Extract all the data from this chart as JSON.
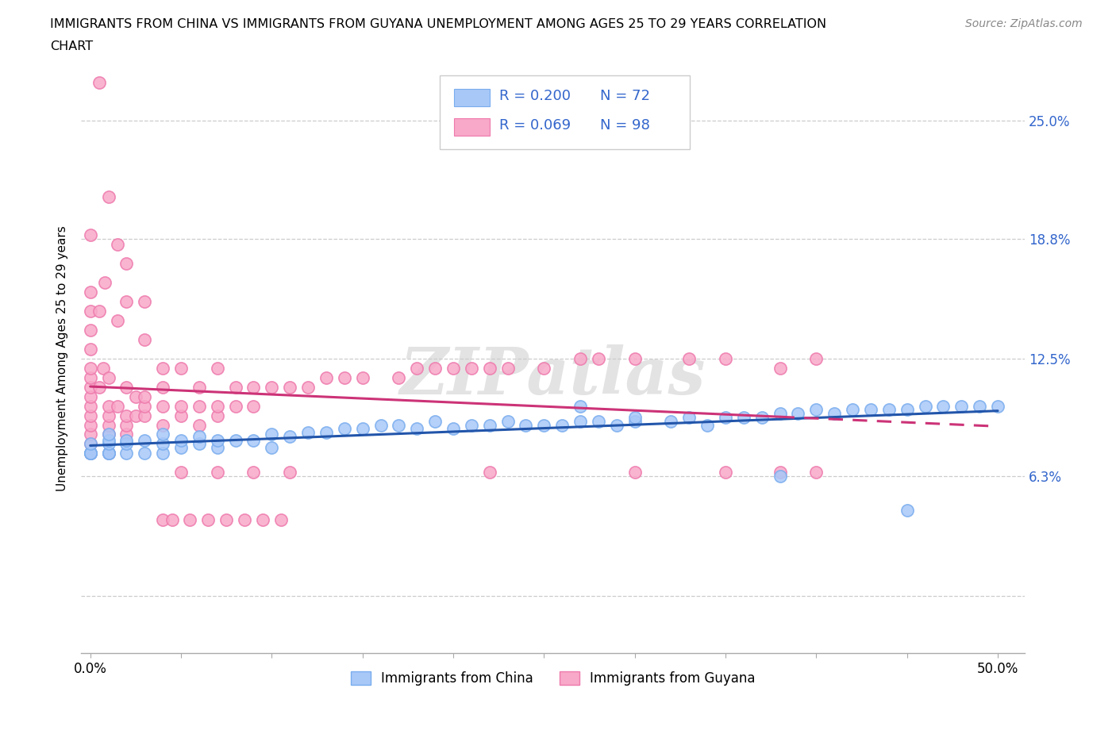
{
  "title_line1": "IMMIGRANTS FROM CHINA VS IMMIGRANTS FROM GUYANA UNEMPLOYMENT AMONG AGES 25 TO 29 YEARS CORRELATION",
  "title_line2": "CHART",
  "source": "Source: ZipAtlas.com",
  "ylabel": "Unemployment Among Ages 25 to 29 years",
  "xlim": [
    -0.005,
    0.515
  ],
  "ylim": [
    -0.03,
    0.28
  ],
  "ytick_vals": [
    0.0,
    0.063,
    0.125,
    0.188,
    0.25
  ],
  "ytick_labels": [
    "",
    "6.3%",
    "12.5%",
    "18.8%",
    "25.0%"
  ],
  "china_color": "#a8c8f8",
  "china_edge_color": "#7aadee",
  "guyana_color": "#f8a8c8",
  "guyana_edge_color": "#ee7aad",
  "china_line_color": "#2255aa",
  "guyana_line_color": "#cc3377",
  "watermark": "ZIPatlas",
  "legend_r_china": "R = 0.200",
  "legend_n_china": "N = 72",
  "legend_r_guyana": "R = 0.069",
  "legend_n_guyana": "N = 98",
  "china_x": [
    0.0,
    0.0,
    0.0,
    0.0,
    0.0,
    0.01,
    0.01,
    0.01,
    0.01,
    0.01,
    0.01,
    0.02,
    0.02,
    0.02,
    0.03,
    0.03,
    0.04,
    0.04,
    0.04,
    0.05,
    0.05,
    0.06,
    0.06,
    0.07,
    0.07,
    0.08,
    0.09,
    0.1,
    0.1,
    0.11,
    0.12,
    0.13,
    0.14,
    0.15,
    0.16,
    0.17,
    0.18,
    0.19,
    0.2,
    0.21,
    0.22,
    0.23,
    0.24,
    0.25,
    0.26,
    0.27,
    0.28,
    0.29,
    0.3,
    0.32,
    0.33,
    0.34,
    0.35,
    0.36,
    0.37,
    0.38,
    0.39,
    0.4,
    0.41,
    0.42,
    0.43,
    0.44,
    0.45,
    0.46,
    0.47,
    0.48,
    0.49,
    0.5,
    0.27,
    0.3,
    0.38,
    0.45
  ],
  "china_y": [
    0.075,
    0.075,
    0.075,
    0.075,
    0.08,
    0.075,
    0.075,
    0.075,
    0.08,
    0.082,
    0.085,
    0.075,
    0.08,
    0.082,
    0.075,
    0.082,
    0.075,
    0.08,
    0.085,
    0.078,
    0.082,
    0.08,
    0.084,
    0.078,
    0.082,
    0.082,
    0.082,
    0.078,
    0.085,
    0.084,
    0.086,
    0.086,
    0.088,
    0.088,
    0.09,
    0.09,
    0.088,
    0.092,
    0.088,
    0.09,
    0.09,
    0.092,
    0.09,
    0.09,
    0.09,
    0.092,
    0.092,
    0.09,
    0.092,
    0.092,
    0.094,
    0.09,
    0.094,
    0.094,
    0.094,
    0.096,
    0.096,
    0.098,
    0.096,
    0.098,
    0.098,
    0.098,
    0.098,
    0.1,
    0.1,
    0.1,
    0.1,
    0.1,
    0.1,
    0.094,
    0.063,
    0.045
  ],
  "guyana_x": [
    0.0,
    0.0,
    0.0,
    0.0,
    0.0,
    0.0,
    0.0,
    0.0,
    0.0,
    0.0,
    0.0,
    0.0,
    0.0,
    0.0,
    0.0,
    0.005,
    0.005,
    0.007,
    0.008,
    0.01,
    0.01,
    0.01,
    0.01,
    0.01,
    0.01,
    0.015,
    0.015,
    0.02,
    0.02,
    0.02,
    0.02,
    0.025,
    0.025,
    0.03,
    0.03,
    0.03,
    0.03,
    0.04,
    0.04,
    0.04,
    0.04,
    0.05,
    0.05,
    0.05,
    0.06,
    0.06,
    0.06,
    0.07,
    0.07,
    0.07,
    0.08,
    0.08,
    0.09,
    0.09,
    0.1,
    0.11,
    0.12,
    0.13,
    0.14,
    0.15,
    0.17,
    0.18,
    0.19,
    0.2,
    0.21,
    0.22,
    0.23,
    0.25,
    0.27,
    0.28,
    0.3,
    0.33,
    0.35,
    0.38,
    0.4,
    0.22,
    0.3,
    0.35,
    0.38,
    0.4,
    0.005,
    0.01,
    0.015,
    0.02,
    0.02,
    0.03,
    0.05,
    0.07,
    0.09,
    0.11,
    0.04,
    0.045,
    0.055,
    0.065,
    0.075,
    0.085,
    0.095,
    0.105
  ],
  "guyana_y": [
    0.075,
    0.08,
    0.085,
    0.09,
    0.095,
    0.1,
    0.105,
    0.11,
    0.115,
    0.12,
    0.13,
    0.14,
    0.15,
    0.16,
    0.19,
    0.11,
    0.15,
    0.12,
    0.165,
    0.075,
    0.085,
    0.09,
    0.095,
    0.1,
    0.115,
    0.1,
    0.145,
    0.085,
    0.09,
    0.095,
    0.11,
    0.095,
    0.105,
    0.095,
    0.1,
    0.105,
    0.135,
    0.09,
    0.1,
    0.11,
    0.12,
    0.095,
    0.1,
    0.12,
    0.09,
    0.1,
    0.11,
    0.095,
    0.1,
    0.12,
    0.1,
    0.11,
    0.1,
    0.11,
    0.11,
    0.11,
    0.11,
    0.115,
    0.115,
    0.115,
    0.115,
    0.12,
    0.12,
    0.12,
    0.12,
    0.12,
    0.12,
    0.12,
    0.125,
    0.125,
    0.125,
    0.125,
    0.125,
    0.12,
    0.125,
    0.065,
    0.065,
    0.065,
    0.065,
    0.065,
    0.27,
    0.21,
    0.185,
    0.175,
    0.155,
    0.155,
    0.065,
    0.065,
    0.065,
    0.065,
    0.04,
    0.04,
    0.04,
    0.04,
    0.04,
    0.04,
    0.04,
    0.04
  ]
}
